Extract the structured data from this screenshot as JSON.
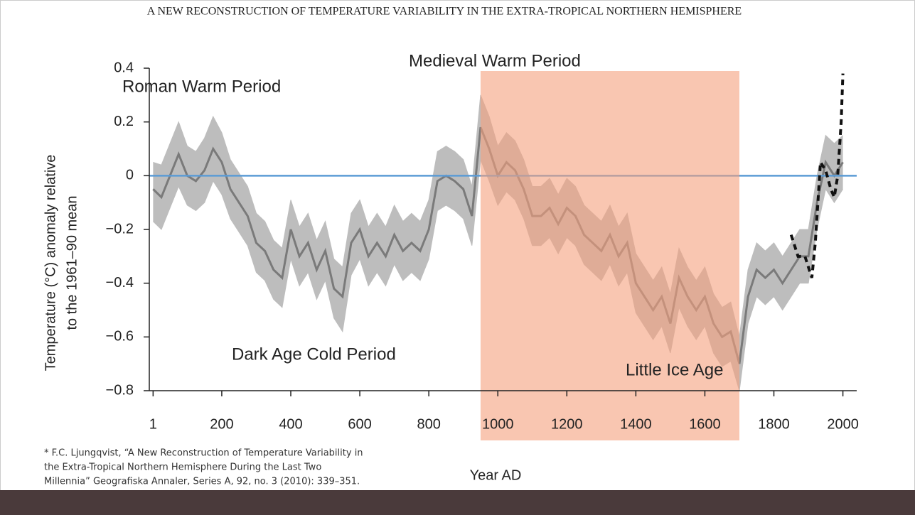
{
  "header": {
    "title": "A NEW RECONSTRUCTION OF TEMPERATURE VARIABILITY IN THE EXTRA-TROPICAL NORTHERN HEMISPHERE"
  },
  "chart_data": {
    "type": "line",
    "ylabel": [
      "Temperature (°C) anomaly relative",
      "to the 1961–90 mean"
    ],
    "xlabel": "Year AD",
    "x": [
      1,
      25,
      50,
      75,
      100,
      125,
      150,
      175,
      200,
      225,
      250,
      275,
      300,
      325,
      350,
      375,
      400,
      425,
      450,
      475,
      500,
      525,
      550,
      575,
      600,
      625,
      650,
      675,
      700,
      725,
      750,
      775,
      800,
      825,
      850,
      875,
      900,
      925,
      950,
      975,
      1000,
      1025,
      1050,
      1075,
      1100,
      1125,
      1150,
      1175,
      1200,
      1225,
      1250,
      1275,
      1300,
      1325,
      1350,
      1375,
      1400,
      1425,
      1450,
      1475,
      1500,
      1525,
      1550,
      1575,
      1600,
      1625,
      1650,
      1675,
      1700,
      1725,
      1750,
      1775,
      1800,
      1825,
      1850,
      1875,
      1900,
      1925,
      1950,
      1975,
      2000
    ],
    "values": [
      -0.05,
      -0.08,
      0.0,
      0.08,
      0.0,
      -0.02,
      0.02,
      0.1,
      0.05,
      -0.05,
      -0.1,
      -0.15,
      -0.25,
      -0.28,
      -0.35,
      -0.38,
      -0.2,
      -0.3,
      -0.25,
      -0.35,
      -0.28,
      -0.42,
      -0.45,
      -0.25,
      -0.2,
      -0.3,
      -0.25,
      -0.3,
      -0.22,
      -0.28,
      -0.25,
      -0.28,
      -0.2,
      -0.02,
      0.0,
      -0.02,
      -0.05,
      -0.15,
      0.18,
      0.1,
      0.0,
      0.05,
      0.02,
      -0.05,
      -0.15,
      -0.15,
      -0.12,
      -0.18,
      -0.12,
      -0.15,
      -0.22,
      -0.25,
      -0.28,
      -0.22,
      -0.3,
      -0.25,
      -0.4,
      -0.45,
      -0.5,
      -0.45,
      -0.55,
      -0.38,
      -0.45,
      -0.5,
      -0.45,
      -0.55,
      -0.6,
      -0.58,
      -0.7,
      -0.45,
      -0.35,
      -0.38,
      -0.35,
      -0.4,
      -0.35,
      -0.3,
      -0.3,
      -0.1,
      0.05,
      0.0,
      0.05
    ],
    "upper": [
      0.05,
      0.04,
      0.12,
      0.2,
      0.11,
      0.09,
      0.14,
      0.22,
      0.16,
      0.06,
      0.01,
      -0.04,
      -0.14,
      -0.17,
      -0.24,
      -0.27,
      -0.09,
      -0.19,
      -0.14,
      -0.24,
      -0.17,
      -0.31,
      -0.34,
      -0.14,
      -0.09,
      -0.19,
      -0.14,
      -0.19,
      -0.11,
      -0.17,
      -0.14,
      -0.17,
      -0.09,
      0.09,
      0.11,
      0.09,
      0.06,
      -0.04,
      0.3,
      0.22,
      0.11,
      0.16,
      0.13,
      0.06,
      -0.04,
      -0.04,
      -0.01,
      -0.07,
      -0.01,
      -0.04,
      -0.11,
      -0.14,
      -0.17,
      -0.11,
      -0.19,
      -0.14,
      -0.29,
      -0.34,
      -0.39,
      -0.34,
      -0.44,
      -0.27,
      -0.34,
      -0.39,
      -0.34,
      -0.44,
      -0.49,
      -0.47,
      -0.6,
      -0.35,
      -0.25,
      -0.28,
      -0.25,
      -0.3,
      -0.25,
      -0.2,
      -0.2,
      0.0,
      0.15,
      0.12,
      0.15
    ],
    "lower": [
      -0.17,
      -0.2,
      -0.12,
      -0.04,
      -0.11,
      -0.13,
      -0.1,
      -0.02,
      -0.07,
      -0.16,
      -0.21,
      -0.26,
      -0.36,
      -0.39,
      -0.46,
      -0.49,
      -0.31,
      -0.41,
      -0.36,
      -0.46,
      -0.39,
      -0.53,
      -0.58,
      -0.37,
      -0.31,
      -0.41,
      -0.36,
      -0.41,
      -0.33,
      -0.39,
      -0.36,
      -0.39,
      -0.31,
      -0.13,
      -0.11,
      -0.13,
      -0.16,
      -0.26,
      0.06,
      -0.02,
      -0.11,
      -0.06,
      -0.09,
      -0.16,
      -0.26,
      -0.26,
      -0.23,
      -0.29,
      -0.23,
      -0.26,
      -0.33,
      -0.36,
      -0.39,
      -0.33,
      -0.41,
      -0.36,
      -0.51,
      -0.56,
      -0.61,
      -0.56,
      -0.66,
      -0.49,
      -0.56,
      -0.61,
      -0.56,
      -0.66,
      -0.71,
      -0.69,
      -0.8,
      -0.55,
      -0.45,
      -0.48,
      -0.45,
      -0.5,
      -0.45,
      -0.4,
      -0.4,
      -0.2,
      -0.05,
      -0.1,
      -0.05
    ],
    "instrumental": {
      "x": [
        1850,
        1870,
        1890,
        1910,
        1920,
        1935,
        1950,
        1965,
        1975,
        1985,
        1995,
        2000
      ],
      "values": [
        -0.22,
        -0.3,
        -0.3,
        -0.38,
        -0.25,
        0.05,
        0.02,
        -0.05,
        -0.08,
        0.0,
        0.2,
        0.38
      ]
    },
    "ref_line": 0,
    "region": {
      "x0": 950,
      "x1": 1700
    },
    "annotations": [
      "Roman Warm Period",
      "Medieval Warm Period",
      "Dark Age Cold Period",
      "Little Ice Age"
    ],
    "xlim": [
      -10,
      2040
    ],
    "ylim": [
      -0.8,
      0.4
    ],
    "xticks": [
      1,
      200,
      400,
      600,
      800,
      1000,
      1200,
      1400,
      1600,
      1800,
      2000
    ],
    "yticks": [
      0.4,
      0.2,
      0,
      {
        "value": -0.2,
        "label": "−0.2"
      },
      {
        "value": -0.4,
        "label": "−0.4"
      },
      {
        "value": -0.6,
        "label": "−0.6"
      },
      {
        "value": -0.8,
        "label": "−0.8"
      }
    ]
  },
  "footnote": [
    "* F.C. Ljungqvist, “A New Reconstruction of Temperature Variability in",
    "the Extra-Tropical Northern Hemisphere During the Last Two",
    "Millennia” Geografiska Annaler, Series A, 92, no. 3 (2010): 339–351."
  ]
}
